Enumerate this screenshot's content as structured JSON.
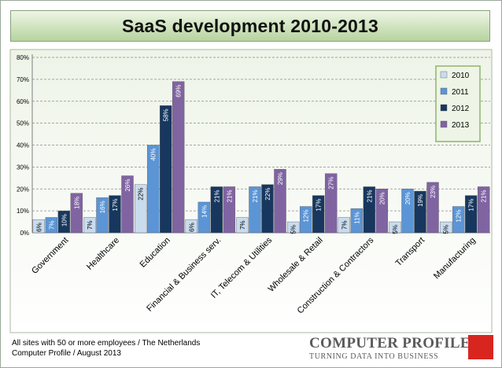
{
  "footnote": {
    "line1": "All sites with 50 or more employees / The Netherlands",
    "line2": "Computer Profile / August 2013"
  },
  "logo": {
    "name": "COMPUTER PROFILE",
    "tagline": "TURNING DATA INTO BUSINESS"
  },
  "chart_data": {
    "type": "bar",
    "title": "SaaS development 2010-2013",
    "xlabel": "",
    "ylabel": "",
    "ylim": [
      0,
      80
    ],
    "yticks": [
      "0%",
      "10%",
      "20%",
      "30%",
      "40%",
      "50%",
      "60%",
      "70%",
      "80%"
    ],
    "grid": "dashed horizontal",
    "legend_position": "right",
    "categories": [
      "Government",
      "Healthcare",
      "Education",
      "Financial & Business serv.",
      "IT, Telecom & Utilities",
      "Wholesale & Retail",
      "Construction & Contractors",
      "Transport",
      "Manufacturing"
    ],
    "series": [
      {
        "name": "2010",
        "color": "#c9dcee",
        "values": [
          6,
          7,
          22,
          6,
          7,
          5,
          7,
          5,
          5
        ],
        "labels": [
          "6%",
          "7%",
          "22%",
          "6%",
          "7%",
          "5%",
          "7%",
          "5%",
          "5%"
        ]
      },
      {
        "name": "2011",
        "color": "#5b95d6",
        "values": [
          7,
          16,
          40,
          14,
          21,
          12,
          11,
          20,
          12
        ],
        "labels": [
          "7%",
          "16%",
          "40%",
          "14%",
          "21%",
          "12%",
          "11%",
          "20%",
          "12%"
        ]
      },
      {
        "name": "2012",
        "color": "#17375e",
        "values": [
          10,
          17,
          58,
          21,
          22,
          17,
          21,
          19,
          17
        ],
        "labels": [
          "10%",
          "17%",
          "58%",
          "21%",
          "22%",
          "17%",
          "21%",
          "19%",
          "17%"
        ]
      },
      {
        "name": "2013",
        "color": "#8064a2",
        "values": [
          18,
          26,
          69,
          21,
          29,
          27,
          20,
          23,
          21
        ],
        "labels": [
          "18%",
          "26%",
          "69%",
          "21%",
          "29%",
          "27%",
          "20%",
          "23%",
          "21%"
        ]
      }
    ]
  }
}
